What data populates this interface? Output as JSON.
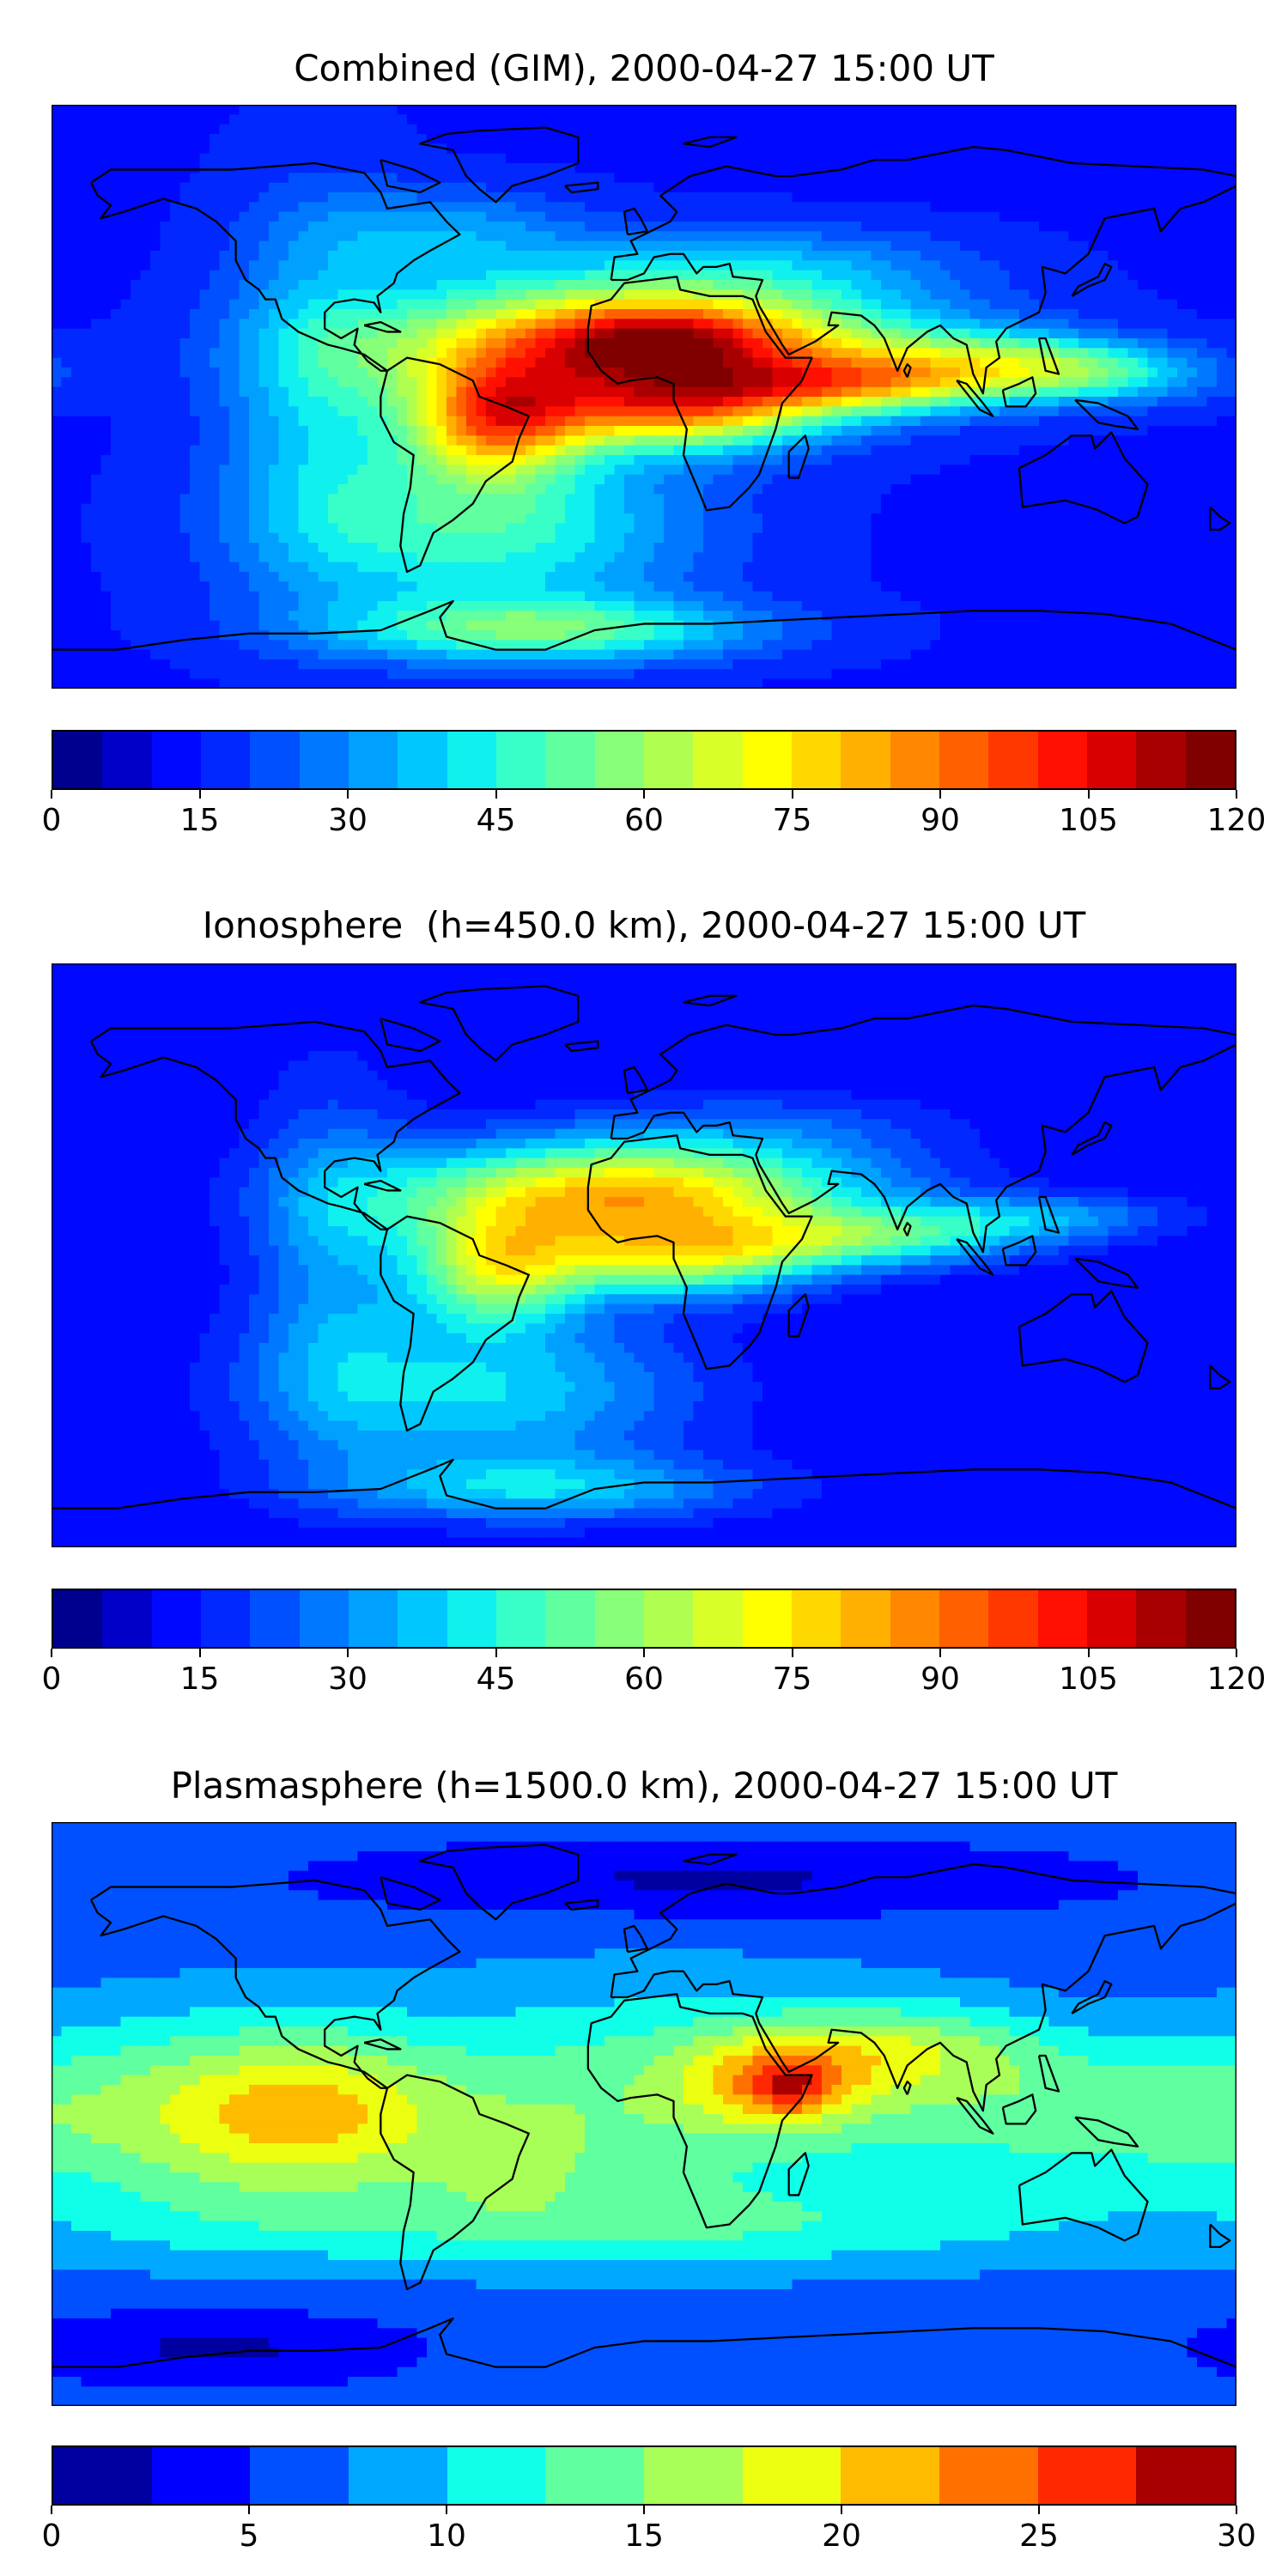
{
  "panels": [
    {
      "id": "combined",
      "title": "Combined (GIM), 2000-04-27 15:00 UT",
      "colorbar": {
        "min": 0,
        "max": 120,
        "ticks": [
          "0",
          "15",
          "30",
          "45",
          "60",
          "75",
          "90",
          "105",
          "120"
        ],
        "colors": [
          "#00008f",
          "#0000c8",
          "#0008ff",
          "#0028ff",
          "#0050ff",
          "#0078ff",
          "#00a0ff",
          "#00c8ff",
          "#10f0ee",
          "#38ffc8",
          "#60ffa0",
          "#88ff78",
          "#b0ff50",
          "#d8ff28",
          "#ffff00",
          "#ffd800",
          "#ffb000",
          "#ff8800",
          "#ff6000",
          "#ff3800",
          "#ff1000",
          "#d80000",
          "#a80000",
          "#800000"
        ]
      },
      "field": {
        "background": 14,
        "blobs": [
          {
            "lon": 0,
            "lat": 15,
            "amp": 90,
            "sx": 55,
            "sy": 14
          },
          {
            "lon": 5,
            "lat": 18,
            "amp": 20,
            "sx": 22,
            "sy": 7
          },
          {
            "lon": -45,
            "lat": -8,
            "amp": 55,
            "sx": 18,
            "sy": 12
          },
          {
            "lon": 10,
            "lat": -5,
            "amp": 45,
            "sx": 30,
            "sy": 8
          },
          {
            "lon": 70,
            "lat": 4,
            "amp": 40,
            "sx": 35,
            "sy": 6
          },
          {
            "lon": 110,
            "lat": 12,
            "amp": 28,
            "sx": 30,
            "sy": 6
          },
          {
            "lon": 140,
            "lat": 6,
            "amp": 22,
            "sx": 25,
            "sy": 6
          },
          {
            "lon": -50,
            "lat": -40,
            "amp": 35,
            "sx": 45,
            "sy": 20
          },
          {
            "lon": -30,
            "lat": -72,
            "amp": 35,
            "sx": 45,
            "sy": 7
          },
          {
            "lon": -100,
            "lat": 5,
            "amp": 18,
            "sx": 20,
            "sy": 40
          },
          {
            "lon": -60,
            "lat": 50,
            "amp": 18,
            "sx": 30,
            "sy": 10
          },
          {
            "lon": 40,
            "lat": 42,
            "amp": 14,
            "sx": 40,
            "sy": 8
          }
        ]
      }
    },
    {
      "id": "ionosphere",
      "title": "Ionosphere  (h=450.0 km), 2000-04-27 15:00 UT",
      "colorbar": {
        "min": 0,
        "max": 120,
        "ticks": [
          "0",
          "15",
          "30",
          "45",
          "60",
          "75",
          "90",
          "105",
          "120"
        ],
        "colors": [
          "#00008f",
          "#0000c8",
          "#0008ff",
          "#0028ff",
          "#0050ff",
          "#0078ff",
          "#00a0ff",
          "#00c8ff",
          "#10f0ee",
          "#38ffc8",
          "#60ffa0",
          "#88ff78",
          "#b0ff50",
          "#d8ff28",
          "#ffff00",
          "#ffd800",
          "#ffb000",
          "#ff8800",
          "#ff6000",
          "#ff3800",
          "#ff1000",
          "#d80000",
          "#a80000",
          "#800000"
        ]
      },
      "field": {
        "background": 10,
        "blobs": [
          {
            "lon": -5,
            "lat": 18,
            "amp": 72,
            "sx": 50,
            "sy": 12
          },
          {
            "lon": -45,
            "lat": -5,
            "amp": 45,
            "sx": 18,
            "sy": 12
          },
          {
            "lon": 10,
            "lat": -2,
            "amp": 40,
            "sx": 30,
            "sy": 8
          },
          {
            "lon": 70,
            "lat": 5,
            "amp": 30,
            "sx": 35,
            "sy": 6
          },
          {
            "lon": 120,
            "lat": 12,
            "amp": 20,
            "sx": 30,
            "sy": 5
          },
          {
            "lon": -50,
            "lat": -42,
            "amp": 30,
            "sx": 45,
            "sy": 18
          },
          {
            "lon": -30,
            "lat": -72,
            "amp": 25,
            "sx": 45,
            "sy": 7
          },
          {
            "lon": -95,
            "lat": 0,
            "amp": 18,
            "sx": 18,
            "sy": 40
          },
          {
            "lon": 40,
            "lat": 40,
            "amp": 10,
            "sx": 40,
            "sy": 8
          }
        ]
      }
    },
    {
      "id": "plasmasphere",
      "title": "Plasmasphere (h=1500.0 km), 2000-04-27 15:00 UT",
      "colorbar": {
        "min": 0,
        "max": 30,
        "ticks": [
          "0",
          "5",
          "10",
          "15",
          "20",
          "25",
          "30"
        ],
        "colors": [
          "#0000a0",
          "#0000ff",
          "#0050ff",
          "#00a8ff",
          "#10ffe8",
          "#60ffa0",
          "#a8ff58",
          "#ecff10",
          "#ffbb00",
          "#ff7000",
          "#ff2800",
          "#a80000"
        ]
      },
      "field": {
        "background": 6,
        "blobs": [
          {
            "lon": -130,
            "lat": 0,
            "amp": 10,
            "sx": 50,
            "sy": 22
          },
          {
            "lon": -100,
            "lat": 0,
            "amp": 6,
            "sx": 25,
            "sy": 15
          },
          {
            "lon": 10,
            "lat": 5,
            "amp": 8,
            "sx": 60,
            "sy": 25
          },
          {
            "lon": 40,
            "lat": 10,
            "amp": 9,
            "sx": 20,
            "sy": 10
          },
          {
            "lon": 45,
            "lat": 8,
            "amp": 5,
            "sx": 8,
            "sy": 6
          },
          {
            "lon": 80,
            "lat": 20,
            "amp": 7,
            "sx": 30,
            "sy": 10
          },
          {
            "lon": 130,
            "lat": 0,
            "amp": 6,
            "sx": 40,
            "sy": 15
          },
          {
            "lon": 0,
            "lat": -35,
            "amp": 5,
            "sx": 120,
            "sy": 10
          },
          {
            "lon": -40,
            "lat": -15,
            "amp": 4,
            "sx": 20,
            "sy": 12
          },
          {
            "lon": -130,
            "lat": -72,
            "amp": -4,
            "sx": 40,
            "sy": 8
          },
          {
            "lon": 20,
            "lat": 72,
            "amp": -4,
            "sx": 80,
            "sy": 8
          }
        ]
      }
    }
  ]
}
